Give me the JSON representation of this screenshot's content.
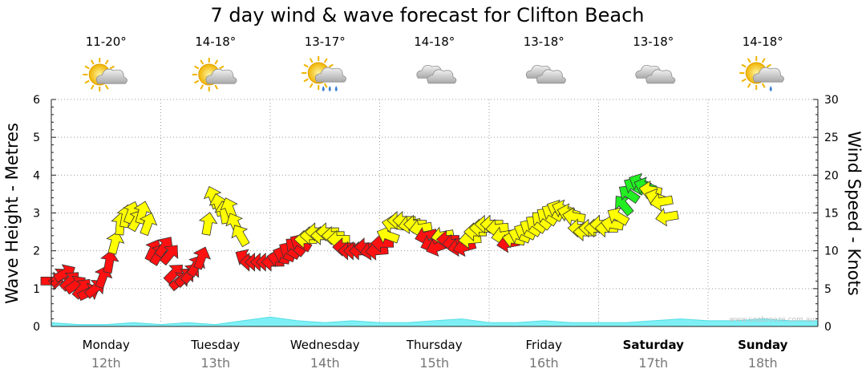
{
  "chart_data": {
    "type": "line",
    "title": "7 day wind & wave forecast for Clifton Beach",
    "ylabel_left": "Wave Height - Metres",
    "ylabel_right": "Wind Speed - Knots",
    "ylim_left": [
      0,
      6
    ],
    "ylim_right": [
      0,
      30
    ],
    "yticks_left": [
      "0",
      "1",
      "2",
      "3",
      "4",
      "5",
      "6"
    ],
    "yticks_right": [
      "0",
      "5",
      "10",
      "15",
      "20",
      "25",
      "30"
    ],
    "grid": "dotted",
    "watermark": "www.seabreeze.com.au",
    "days": [
      {
        "name": "Monday",
        "date": "12th",
        "temp": "11-20°",
        "icon": "partly-cloudy-icon",
        "bold": false
      },
      {
        "name": "Tuesday",
        "date": "13th",
        "temp": "14-18°",
        "icon": "partly-cloudy-icon",
        "bold": false
      },
      {
        "name": "Wednesday",
        "date": "14th",
        "temp": "13-17°",
        "icon": "showers-icon",
        "bold": false
      },
      {
        "name": "Thursday",
        "date": "15th",
        "temp": "14-18°",
        "icon": "cloudy-icon",
        "bold": false
      },
      {
        "name": "Friday",
        "date": "16th",
        "temp": "13-18°",
        "icon": "cloudy-icon",
        "bold": false
      },
      {
        "name": "Saturday",
        "date": "17th",
        "temp": "13-18°",
        "icon": "cloudy-icon",
        "bold": true
      },
      {
        "name": "Sunday",
        "date": "18th",
        "temp": "14-18°",
        "icon": "light-rain-icon",
        "bold": true
      }
    ],
    "wave_series": {
      "name": "Wave Height",
      "unit": "m",
      "x_day": [
        0,
        0.25,
        0.5,
        0.75,
        1.0,
        1.25,
        1.5,
        1.75,
        2.0,
        2.25,
        2.5,
        2.75,
        3.0,
        3.25,
        3.5,
        3.75,
        4.0,
        4.25,
        4.5,
        4.75,
        5.0,
        5.25,
        5.5,
        5.75,
        6.0,
        6.25,
        6.5,
        6.75,
        7.0
      ],
      "values": [
        0.1,
        0.05,
        0.05,
        0.1,
        0.05,
        0.1,
        0.05,
        0.15,
        0.25,
        0.15,
        0.1,
        0.15,
        0.1,
        0.1,
        0.15,
        0.2,
        0.1,
        0.1,
        0.15,
        0.1,
        0.1,
        0.1,
        0.15,
        0.2,
        0.15,
        0.15,
        0.2,
        0.15,
        0.15
      ]
    },
    "wind_series": {
      "name": "Wind Speed",
      "unit": "knots",
      "colors": {
        "strong": "#ff1111",
        "moderate": "#ffff00",
        "light": "#22ee22"
      },
      "points": [
        {
          "day": 0.0,
          "knots": 6,
          "level": "strong",
          "angle": 0
        },
        {
          "day": 0.07,
          "knots": 6.5,
          "level": "strong",
          "angle": -40
        },
        {
          "day": 0.12,
          "knots": 7,
          "level": "strong",
          "angle": -30
        },
        {
          "day": 0.17,
          "knots": 6,
          "level": "strong",
          "angle": -45
        },
        {
          "day": 0.22,
          "knots": 5.5,
          "level": "strong",
          "angle": -35
        },
        {
          "day": 0.28,
          "knots": 5,
          "level": "strong",
          "angle": -50
        },
        {
          "day": 0.34,
          "knots": 4.5,
          "level": "strong",
          "angle": -25
        },
        {
          "day": 0.4,
          "knots": 5,
          "level": "strong",
          "angle": -40
        },
        {
          "day": 0.47,
          "knots": 6.5,
          "level": "strong",
          "angle": -70
        },
        {
          "day": 0.53,
          "knots": 8.5,
          "level": "strong",
          "angle": -80
        },
        {
          "day": 0.58,
          "knots": 11,
          "level": "moderate",
          "angle": -75
        },
        {
          "day": 0.63,
          "knots": 13.5,
          "level": "moderate",
          "angle": -85
        },
        {
          "day": 0.68,
          "knots": 14.5,
          "level": "moderate",
          "angle": -80
        },
        {
          "day": 0.73,
          "knots": 15,
          "level": "moderate",
          "angle": -70
        },
        {
          "day": 0.78,
          "knots": 14,
          "level": "moderate",
          "angle": -60
        },
        {
          "day": 0.83,
          "knots": 15,
          "level": "moderate",
          "angle": -75
        },
        {
          "day": 0.88,
          "knots": 13.5,
          "level": "moderate",
          "angle": -70
        },
        {
          "day": 0.93,
          "knots": 10,
          "level": "strong",
          "angle": -65
        },
        {
          "day": 0.98,
          "knots": 9.5,
          "level": "strong",
          "angle": -60
        },
        {
          "day": 1.03,
          "knots": 10.5,
          "level": "strong",
          "angle": -55
        },
        {
          "day": 1.08,
          "knots": 9.5,
          "level": "strong",
          "angle": -50
        },
        {
          "day": 1.12,
          "knots": 7,
          "level": "strong",
          "angle": -45
        },
        {
          "day": 1.17,
          "knots": 6,
          "level": "strong",
          "angle": -40
        },
        {
          "day": 1.22,
          "knots": 6.5,
          "level": "strong",
          "angle": -45
        },
        {
          "day": 1.27,
          "knots": 7,
          "level": "strong",
          "angle": -50
        },
        {
          "day": 1.32,
          "knots": 8,
          "level": "strong",
          "angle": -60
        },
        {
          "day": 1.37,
          "knots": 9,
          "level": "strong",
          "angle": -70
        },
        {
          "day": 1.43,
          "knots": 13.5,
          "level": "moderate",
          "angle": -80
        },
        {
          "day": 1.48,
          "knots": 17,
          "level": "moderate",
          "angle": -110
        },
        {
          "day": 1.53,
          "knots": 16,
          "level": "moderate",
          "angle": -105
        },
        {
          "day": 1.58,
          "knots": 15,
          "level": "moderate",
          "angle": -100
        },
        {
          "day": 1.63,
          "knots": 15.5,
          "level": "moderate",
          "angle": -110
        },
        {
          "day": 1.68,
          "knots": 13.5,
          "level": "moderate",
          "angle": -115
        },
        {
          "day": 1.73,
          "knots": 12,
          "level": "moderate",
          "angle": -120
        },
        {
          "day": 1.78,
          "knots": 9,
          "level": "strong",
          "angle": -150
        },
        {
          "day": 1.83,
          "knots": 8.5,
          "level": "strong",
          "angle": 180
        },
        {
          "day": 1.88,
          "knots": 8.5,
          "level": "strong",
          "angle": 180
        },
        {
          "day": 1.93,
          "knots": 8.5,
          "level": "strong",
          "angle": 180
        },
        {
          "day": 1.98,
          "knots": 8.5,
          "level": "strong",
          "angle": 180
        },
        {
          "day": 2.03,
          "knots": 8.5,
          "level": "strong",
          "angle": 180
        },
        {
          "day": 2.08,
          "knots": 9,
          "level": "strong",
          "angle": -170
        },
        {
          "day": 2.13,
          "knots": 9.5,
          "level": "strong",
          "angle": -160
        },
        {
          "day": 2.18,
          "knots": 10,
          "level": "strong",
          "angle": -150
        },
        {
          "day": 2.23,
          "knots": 10.5,
          "level": "strong",
          "angle": -140
        },
        {
          "day": 2.28,
          "knots": 11,
          "level": "strong",
          "angle": -150
        },
        {
          "day": 2.33,
          "knots": 11.5,
          "level": "moderate",
          "angle": 180
        },
        {
          "day": 2.38,
          "knots": 12,
          "level": "moderate",
          "angle": 180
        },
        {
          "day": 2.43,
          "knots": 12.5,
          "level": "moderate",
          "angle": 180
        },
        {
          "day": 2.48,
          "knots": 12,
          "level": "moderate",
          "angle": 180
        },
        {
          "day": 2.53,
          "knots": 12.5,
          "level": "moderate",
          "angle": 180
        },
        {
          "day": 2.58,
          "knots": 12,
          "level": "moderate",
          "angle": 180
        },
        {
          "day": 2.63,
          "knots": 11.5,
          "level": "moderate",
          "angle": 180
        },
        {
          "day": 2.68,
          "knots": 10.5,
          "level": "strong",
          "angle": 180
        },
        {
          "day": 2.73,
          "knots": 10,
          "level": "strong",
          "angle": 180
        },
        {
          "day": 2.78,
          "knots": 10,
          "level": "strong",
          "angle": 180
        },
        {
          "day": 2.83,
          "knots": 10,
          "level": "strong",
          "angle": 180
        },
        {
          "day": 2.88,
          "knots": 10.5,
          "level": "strong",
          "angle": 180
        },
        {
          "day": 2.93,
          "knots": 10,
          "level": "strong",
          "angle": 170
        },
        {
          "day": 2.98,
          "knots": 10,
          "level": "strong",
          "angle": 175
        },
        {
          "day": 3.03,
          "knots": 11,
          "level": "strong",
          "angle": 180
        },
        {
          "day": 3.08,
          "knots": 12,
          "level": "moderate",
          "angle": -160
        },
        {
          "day": 3.13,
          "knots": 13.5,
          "level": "moderate",
          "angle": -170
        },
        {
          "day": 3.18,
          "knots": 14,
          "level": "moderate",
          "angle": 180
        },
        {
          "day": 3.23,
          "knots": 14,
          "level": "moderate",
          "angle": 180
        },
        {
          "day": 3.28,
          "knots": 13.5,
          "level": "moderate",
          "angle": 170
        },
        {
          "day": 3.33,
          "knots": 13.5,
          "level": "moderate",
          "angle": 180
        },
        {
          "day": 3.38,
          "knots": 13,
          "level": "moderate",
          "angle": 170
        },
        {
          "day": 3.43,
          "knots": 12,
          "level": "strong",
          "angle": 165
        },
        {
          "day": 3.48,
          "knots": 11,
          "level": "strong",
          "angle": 160
        },
        {
          "day": 3.53,
          "knots": 10.5,
          "level": "strong",
          "angle": 160
        },
        {
          "day": 3.58,
          "knots": 12,
          "level": "moderate",
          "angle": 170
        },
        {
          "day": 3.63,
          "knots": 11.5,
          "level": "strong",
          "angle": 180
        },
        {
          "day": 3.68,
          "knots": 11,
          "level": "strong",
          "angle": 175
        },
        {
          "day": 3.73,
          "knots": 10.5,
          "level": "strong",
          "angle": 170
        },
        {
          "day": 3.78,
          "knots": 10.5,
          "level": "strong",
          "angle": 165
        },
        {
          "day": 3.83,
          "knots": 11.5,
          "level": "moderate",
          "angle": 175
        },
        {
          "day": 3.88,
          "knots": 12.5,
          "level": "moderate",
          "angle": 180
        },
        {
          "day": 3.93,
          "knots": 13,
          "level": "moderate",
          "angle": 180
        },
        {
          "day": 3.98,
          "knots": 13.5,
          "level": "moderate",
          "angle": 180
        },
        {
          "day": 4.03,
          "knots": 13.5,
          "level": "moderate",
          "angle": 180
        },
        {
          "day": 4.08,
          "knots": 13,
          "level": "moderate",
          "angle": 175
        },
        {
          "day": 4.13,
          "knots": 12,
          "level": "moderate",
          "angle": 170
        },
        {
          "day": 4.18,
          "knots": 11,
          "level": "strong",
          "angle": 170
        },
        {
          "day": 4.23,
          "knots": 11.5,
          "level": "moderate",
          "angle": -170
        },
        {
          "day": 4.28,
          "knots": 12,
          "level": "moderate",
          "angle": -160
        },
        {
          "day": 4.33,
          "knots": 12.5,
          "level": "moderate",
          "angle": -155
        },
        {
          "day": 4.38,
          "knots": 13,
          "level": "moderate",
          "angle": -150
        },
        {
          "day": 4.43,
          "knots": 13.5,
          "level": "moderate",
          "angle": -145
        },
        {
          "day": 4.48,
          "knots": 14,
          "level": "moderate",
          "angle": -140
        },
        {
          "day": 4.53,
          "knots": 14.5,
          "level": "moderate",
          "angle": -145
        },
        {
          "day": 4.58,
          "knots": 15,
          "level": "moderate",
          "angle": -150
        },
        {
          "day": 4.63,
          "knots": 15.5,
          "level": "moderate",
          "angle": -155
        },
        {
          "day": 4.68,
          "knots": 15.5,
          "level": "moderate",
          "angle": -160
        },
        {
          "day": 4.73,
          "knots": 15,
          "level": "moderate",
          "angle": -165
        },
        {
          "day": 4.78,
          "knots": 14.5,
          "level": "moderate",
          "angle": -170
        },
        {
          "day": 4.83,
          "knots": 13,
          "level": "moderate",
          "angle": 180
        },
        {
          "day": 4.88,
          "knots": 12.5,
          "level": "moderate",
          "angle": 180
        },
        {
          "day": 4.93,
          "knots": 13,
          "level": "moderate",
          "angle": 180
        },
        {
          "day": 4.98,
          "knots": 13,
          "level": "moderate",
          "angle": 180
        },
        {
          "day": 5.03,
          "knots": 13.5,
          "level": "moderate",
          "angle": 180
        },
        {
          "day": 5.08,
          "knots": 13,
          "level": "moderate",
          "angle": 180
        },
        {
          "day": 5.13,
          "knots": 13.5,
          "level": "moderate",
          "angle": -170
        },
        {
          "day": 5.18,
          "knots": 14.5,
          "level": "moderate",
          "angle": -150
        },
        {
          "day": 5.23,
          "knots": 16,
          "level": "light",
          "angle": -130
        },
        {
          "day": 5.28,
          "knots": 17.5,
          "level": "light",
          "angle": -145
        },
        {
          "day": 5.33,
          "knots": 18.5,
          "level": "light",
          "angle": -150
        },
        {
          "day": 5.38,
          "knots": 19,
          "level": "light",
          "angle": -155
        },
        {
          "day": 5.43,
          "knots": 18.5,
          "level": "light",
          "angle": -160
        },
        {
          "day": 5.48,
          "knots": 18,
          "level": "moderate",
          "angle": -170
        },
        {
          "day": 5.53,
          "knots": 17,
          "level": "moderate",
          "angle": -160
        },
        {
          "day": 5.58,
          "knots": 16.5,
          "level": "moderate",
          "angle": 170
        },
        {
          "day": 5.63,
          "knots": 14.5,
          "level": "moderate",
          "angle": 170
        }
      ]
    }
  }
}
